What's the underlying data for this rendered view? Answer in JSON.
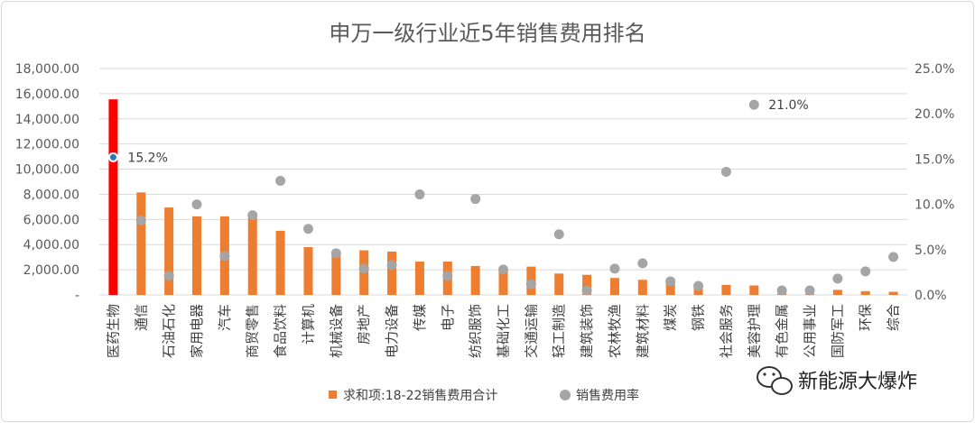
{
  "chart_data": {
    "type": "bar",
    "title": "申万一级行业近5年销售费用排名",
    "categories": [
      "医药生物",
      "通信",
      "石油石化",
      "家用电器",
      "汽车",
      "商贸零售",
      "食品饮料",
      "计算机",
      "机械设备",
      "房地产",
      "电力设备",
      "传媒",
      "电子",
      "纺织服饰",
      "基础化工",
      "交通运输",
      "轻工制造",
      "建筑装饰",
      "农林牧渔",
      "建筑材料",
      "煤炭",
      "钢铁",
      "社会服务",
      "美容护理",
      "有色金属",
      "公用事业",
      "国防军工",
      "环保",
      "综合"
    ],
    "series": [
      {
        "name": "求和项:18-22销售费用合计",
        "type": "bar",
        "axis": "left",
        "values": [
          15550,
          8150,
          6950,
          6250,
          6250,
          6200,
          5100,
          3800,
          3400,
          3550,
          3450,
          2650,
          2650,
          2300,
          2000,
          2250,
          1700,
          1600,
          1350,
          1200,
          1000,
          650,
          800,
          750,
          150,
          100,
          400,
          300,
          250
        ]
      },
      {
        "name": "销售费用率",
        "type": "scatter",
        "axis": "right",
        "values": [
          15.2,
          8.2,
          2.1,
          10.0,
          4.3,
          8.8,
          12.6,
          7.3,
          4.6,
          2.9,
          3.3,
          11.1,
          2.1,
          10.6,
          2.8,
          1.2,
          6.7,
          0.5,
          2.9,
          3.5,
          1.5,
          1.0,
          13.6,
          21.0,
          0.5,
          0.5,
          1.8,
          2.6,
          4.2
        ]
      }
    ],
    "y_left": {
      "min": 0,
      "max": 18000,
      "ticks": [
        "-",
        "2,000.00",
        "4,000.00",
        "6,000.00",
        "8,000.00",
        "10,000.00",
        "12,000.00",
        "14,000.00",
        "16,000.00",
        "18,000.00"
      ]
    },
    "y_right": {
      "min": 0,
      "max": 25,
      "ticks": [
        "0.0%",
        "5.0%",
        "10.0%",
        "15.0%",
        "20.0%",
        "25.0%"
      ]
    },
    "annotations": [
      {
        "category": "医药生物",
        "text": "15.2%"
      },
      {
        "category": "美容护理",
        "text": "21.0%"
      }
    ],
    "colors": {
      "bar": "#ed7d31",
      "highlight_bar": "#ff0000",
      "dot": "#a5a5a5",
      "highlight_dot": "#2e75b6"
    },
    "highlight_index": 0,
    "legend_position": "bottom"
  },
  "watermark": {
    "text": "新能源大爆炸",
    "icon": "wechat-icon"
  }
}
